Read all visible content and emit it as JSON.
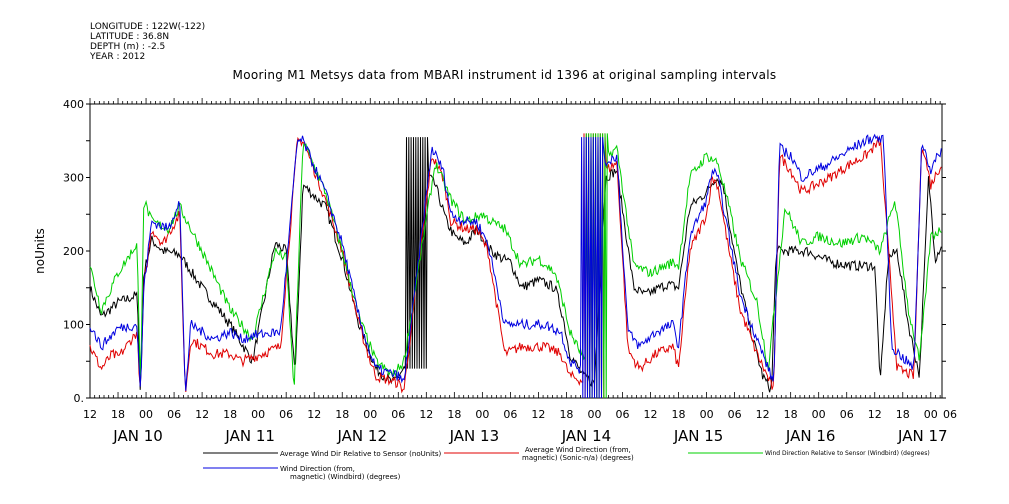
{
  "meta": {
    "longitude": "LONGITUDE : 122W(-122)",
    "latitude": "LATITUDE : 36.8N",
    "depth": "DEPTH (m) : -2.5",
    "year": "YEAR : 2012"
  },
  "chart_data": {
    "type": "line",
    "title": "Mooring M1 Metsys data from MBARI instrument id 1396 at original sampling intervals",
    "ylabel": "noUnits",
    "ylim": [
      0,
      400
    ],
    "yticks": [
      "0.",
      "100",
      "200",
      "300",
      "400"
    ],
    "xlim_days": [
      9.5,
      17.1
    ],
    "hour_ticks": [
      {
        "d": 9.5,
        "label": "12"
      },
      {
        "d": 9.75,
        "label": "18"
      },
      {
        "d": 10.0,
        "label": "00"
      },
      {
        "d": 10.25,
        "label": "06"
      },
      {
        "d": 10.5,
        "label": "12"
      },
      {
        "d": 10.75,
        "label": "18"
      },
      {
        "d": 11.0,
        "label": "00"
      },
      {
        "d": 11.25,
        "label": "06"
      },
      {
        "d": 11.5,
        "label": "12"
      },
      {
        "d": 11.75,
        "label": "18"
      },
      {
        "d": 12.0,
        "label": "00"
      },
      {
        "d": 12.25,
        "label": "06"
      },
      {
        "d": 12.5,
        "label": "12"
      },
      {
        "d": 12.75,
        "label": "18"
      },
      {
        "d": 13.0,
        "label": "00"
      },
      {
        "d": 13.25,
        "label": "06"
      },
      {
        "d": 13.5,
        "label": "12"
      },
      {
        "d": 13.75,
        "label": "18"
      },
      {
        "d": 14.0,
        "label": "00"
      },
      {
        "d": 14.25,
        "label": "06"
      },
      {
        "d": 14.5,
        "label": "12"
      },
      {
        "d": 14.75,
        "label": "18"
      },
      {
        "d": 15.0,
        "label": "00"
      },
      {
        "d": 15.25,
        "label": "06"
      },
      {
        "d": 15.5,
        "label": "12"
      },
      {
        "d": 15.75,
        "label": "18"
      },
      {
        "d": 16.0,
        "label": "00"
      },
      {
        "d": 16.25,
        "label": "06"
      },
      {
        "d": 16.5,
        "label": "12"
      },
      {
        "d": 16.75,
        "label": "18"
      },
      {
        "d": 17.0,
        "label": "00"
      },
      {
        "d": 17.25,
        "label": "06"
      }
    ],
    "day_labels": [
      {
        "d": 10.0,
        "label": "JAN 10"
      },
      {
        "d": 11.0,
        "label": "JAN 11"
      },
      {
        "d": 12.0,
        "label": "JAN 12"
      },
      {
        "d": 13.0,
        "label": "JAN 13"
      },
      {
        "d": 14.0,
        "label": "JAN 14"
      },
      {
        "d": 15.0,
        "label": "JAN 15"
      },
      {
        "d": 16.0,
        "label": "JAN 16"
      },
      {
        "d": 17.0,
        "label": "JAN 17"
      }
    ],
    "series": [
      {
        "name": "Average Wind Dir Relative to Sensor (noUnits)",
        "color": "#000000",
        "anchors": [
          [
            9.5,
            150
          ],
          [
            9.6,
            110
          ],
          [
            9.75,
            130
          ],
          [
            9.92,
            140
          ],
          [
            9.95,
            5
          ],
          [
            9.98,
            170
          ],
          [
            10.05,
            215
          ],
          [
            10.15,
            200
          ],
          [
            10.3,
            195
          ],
          [
            10.5,
            150
          ],
          [
            10.75,
            100
          ],
          [
            10.95,
            50
          ],
          [
            11.15,
            210
          ],
          [
            11.25,
            200
          ],
          [
            11.33,
            30
          ],
          [
            11.4,
            290
          ],
          [
            11.6,
            260
          ],
          [
            11.75,
            190
          ],
          [
            11.9,
            100
          ],
          [
            12.0,
            60
          ],
          [
            12.05,
            40
          ],
          [
            12.2,
            20
          ],
          [
            12.3,
            40
          ],
          [
            12.4,
            20
          ],
          [
            12.46,
            300
          ],
          [
            12.53,
            300
          ],
          [
            12.58,
            290
          ],
          [
            12.68,
            240
          ],
          [
            12.75,
            220
          ],
          [
            12.85,
            210
          ],
          [
            12.95,
            230
          ],
          [
            13.08,
            200
          ],
          [
            13.17,
            190
          ],
          [
            13.25,
            185
          ],
          [
            13.35,
            150
          ],
          [
            13.5,
            160
          ],
          [
            13.65,
            150
          ],
          [
            13.72,
            110
          ],
          [
            13.78,
            60
          ],
          [
            13.9,
            30
          ],
          [
            14.0,
            20
          ],
          [
            14.1,
            300
          ],
          [
            14.2,
            310
          ],
          [
            14.35,
            150
          ],
          [
            14.45,
            140
          ],
          [
            14.65,
            155
          ],
          [
            14.75,
            150
          ],
          [
            14.85,
            260
          ],
          [
            15.0,
            280
          ],
          [
            15.08,
            300
          ],
          [
            15.15,
            290
          ],
          [
            15.2,
            240
          ],
          [
            15.28,
            170
          ],
          [
            15.38,
            100
          ],
          [
            15.5,
            30
          ],
          [
            15.58,
            10
          ],
          [
            15.62,
            200
          ],
          [
            15.7,
            200
          ],
          [
            15.9,
            200
          ],
          [
            16.1,
            185
          ],
          [
            16.3,
            180
          ],
          [
            16.5,
            180
          ],
          [
            16.55,
            20
          ],
          [
            16.62,
            190
          ],
          [
            16.7,
            200
          ],
          [
            16.8,
            100
          ],
          [
            16.9,
            30
          ],
          [
            16.98,
            300
          ],
          [
            17.04,
            190
          ],
          [
            17.1,
            210
          ]
        ],
        "switch": {
          "from": 12.32,
          "to": 12.52,
          "hi": 355,
          "lo": 40
        }
      },
      {
        "name": "Average Wind Direction (from, magnetic) (Sonic-n/a) (degrees)",
        "color": "#e00000",
        "anchors": [
          [
            9.5,
            70
          ],
          [
            9.6,
            40
          ],
          [
            9.7,
            60
          ],
          [
            9.75,
            55
          ],
          [
            9.92,
            90
          ],
          [
            9.95,
            5
          ],
          [
            9.98,
            150
          ],
          [
            10.05,
            230
          ],
          [
            10.15,
            210
          ],
          [
            10.3,
            250
          ],
          [
            10.35,
            5
          ],
          [
            10.4,
            80
          ],
          [
            10.6,
            60
          ],
          [
            10.75,
            60
          ],
          [
            10.85,
            50
          ],
          [
            10.95,
            55
          ],
          [
            11.2,
            70
          ],
          [
            11.35,
            350
          ],
          [
            11.4,
            350
          ],
          [
            11.6,
            270
          ],
          [
            11.75,
            200
          ],
          [
            11.9,
            100
          ],
          [
            12.0,
            50
          ],
          [
            12.05,
            30
          ],
          [
            12.25,
            20
          ],
          [
            12.3,
            10
          ],
          [
            12.55,
            330
          ],
          [
            12.65,
            300
          ],
          [
            12.72,
            240
          ],
          [
            12.85,
            230
          ],
          [
            12.95,
            230
          ],
          [
            13.05,
            200
          ],
          [
            13.2,
            60
          ],
          [
            13.35,
            70
          ],
          [
            13.55,
            70
          ],
          [
            13.7,
            60
          ],
          [
            13.78,
            30
          ],
          [
            13.95,
            20
          ],
          [
            14.05,
            350
          ],
          [
            14.1,
            310
          ],
          [
            14.2,
            320
          ],
          [
            14.3,
            65
          ],
          [
            14.4,
            40
          ],
          [
            14.55,
            60
          ],
          [
            14.7,
            70
          ],
          [
            14.75,
            40
          ],
          [
            14.85,
            200
          ],
          [
            15.0,
            250
          ],
          [
            15.05,
            300
          ],
          [
            15.1,
            290
          ],
          [
            15.2,
            200
          ],
          [
            15.3,
            120
          ],
          [
            15.45,
            60
          ],
          [
            15.6,
            10
          ],
          [
            15.65,
            330
          ],
          [
            15.75,
            310
          ],
          [
            15.85,
            280
          ],
          [
            16.1,
            300
          ],
          [
            16.3,
            320
          ],
          [
            16.42,
            330
          ],
          [
            16.55,
            350
          ],
          [
            16.7,
            40
          ],
          [
            16.85,
            30
          ],
          [
            16.92,
            350
          ],
          [
            17.0,
            290
          ],
          [
            17.1,
            320
          ]
        ],
        "switch": {
          "from": 13.9,
          "to": 14.1,
          "hi": 360,
          "lo": 0
        }
      },
      {
        "name": "Wind Direction Relative to Sensor (Windbird) (degrees)",
        "color": "#00d000",
        "anchors": [
          [
            9.5,
            180
          ],
          [
            9.6,
            120
          ],
          [
            9.75,
            170
          ],
          [
            9.92,
            210
          ],
          [
            9.95,
            10
          ],
          [
            9.98,
            270
          ],
          [
            10.05,
            240
          ],
          [
            10.2,
            230
          ],
          [
            10.3,
            260
          ],
          [
            10.5,
            200
          ],
          [
            10.75,
            120
          ],
          [
            10.95,
            80
          ],
          [
            11.15,
            200
          ],
          [
            11.25,
            190
          ],
          [
            11.32,
            10
          ],
          [
            11.4,
            350
          ],
          [
            11.6,
            280
          ],
          [
            11.75,
            200
          ],
          [
            11.9,
            110
          ],
          [
            12.0,
            70
          ],
          [
            12.05,
            50
          ],
          [
            12.2,
            30
          ],
          [
            12.3,
            50
          ],
          [
            12.58,
            320
          ],
          [
            12.72,
            270
          ],
          [
            12.85,
            240
          ],
          [
            13.0,
            250
          ],
          [
            13.08,
            240
          ],
          [
            13.2,
            230
          ],
          [
            13.35,
            180
          ],
          [
            13.5,
            190
          ],
          [
            13.65,
            170
          ],
          [
            13.72,
            130
          ],
          [
            13.78,
            90
          ],
          [
            13.95,
            40
          ],
          [
            14.05,
            320
          ],
          [
            14.2,
            340
          ],
          [
            14.35,
            180
          ],
          [
            14.5,
            170
          ],
          [
            14.7,
            185
          ],
          [
            14.75,
            180
          ],
          [
            14.85,
            300
          ],
          [
            15.0,
            330
          ],
          [
            15.1,
            320
          ],
          [
            15.2,
            260
          ],
          [
            15.3,
            190
          ],
          [
            15.45,
            130
          ],
          [
            15.55,
            40
          ],
          [
            15.7,
            260
          ],
          [
            15.85,
            210
          ],
          [
            16.0,
            220
          ],
          [
            16.2,
            210
          ],
          [
            16.4,
            220
          ],
          [
            16.55,
            200
          ],
          [
            16.68,
            270
          ],
          [
            16.8,
            120
          ],
          [
            16.9,
            50
          ],
          [
            17.0,
            220
          ],
          [
            17.1,
            230
          ]
        ],
        "switch": {
          "from": 13.92,
          "to": 14.12,
          "hi": 360,
          "lo": 0
        }
      },
      {
        "name": "Wind Direction (from, magnetic) (Windbird) (degrees)",
        "color": "#0000e0",
        "anchors": [
          [
            9.5,
            100
          ],
          [
            9.6,
            70
          ],
          [
            9.75,
            95
          ],
          [
            9.92,
            100
          ],
          [
            9.95,
            5
          ],
          [
            9.98,
            150
          ],
          [
            10.05,
            240
          ],
          [
            10.2,
            230
          ],
          [
            10.3,
            270
          ],
          [
            10.35,
            5
          ],
          [
            10.4,
            100
          ],
          [
            10.6,
            80
          ],
          [
            10.75,
            90
          ],
          [
            10.85,
            80
          ],
          [
            10.95,
            85
          ],
          [
            11.2,
            90
          ],
          [
            11.35,
            350
          ],
          [
            11.4,
            350
          ],
          [
            11.6,
            280
          ],
          [
            11.75,
            210
          ],
          [
            11.9,
            110
          ],
          [
            12.0,
            60
          ],
          [
            12.05,
            40
          ],
          [
            12.25,
            30
          ],
          [
            12.3,
            20
          ],
          [
            12.55,
            340
          ],
          [
            12.65,
            310
          ],
          [
            12.72,
            250
          ],
          [
            12.85,
            240
          ],
          [
            12.95,
            240
          ],
          [
            13.05,
            210
          ],
          [
            13.2,
            100
          ],
          [
            13.35,
            100
          ],
          [
            13.55,
            100
          ],
          [
            13.7,
            90
          ],
          [
            13.78,
            50
          ],
          [
            13.95,
            30
          ],
          [
            14.05,
            350
          ],
          [
            14.1,
            320
          ],
          [
            14.2,
            330
          ],
          [
            14.3,
            90
          ],
          [
            14.4,
            70
          ],
          [
            14.55,
            90
          ],
          [
            14.7,
            100
          ],
          [
            14.75,
            70
          ],
          [
            14.85,
            220
          ],
          [
            15.0,
            270
          ],
          [
            15.05,
            310
          ],
          [
            15.1,
            300
          ],
          [
            15.2,
            220
          ],
          [
            15.3,
            140
          ],
          [
            15.45,
            80
          ],
          [
            15.6,
            20
          ],
          [
            15.65,
            340
          ],
          [
            15.75,
            330
          ],
          [
            15.85,
            300
          ],
          [
            16.1,
            320
          ],
          [
            16.3,
            340
          ],
          [
            16.42,
            350
          ],
          [
            16.5,
            355
          ],
          [
            16.58,
            350
          ],
          [
            16.65,
            70
          ],
          [
            16.85,
            40
          ],
          [
            16.92,
            350
          ],
          [
            17.0,
            310
          ],
          [
            17.1,
            340
          ]
        ],
        "switch": {
          "from": 13.88,
          "to": 14.08,
          "hi": 355,
          "lo": 0
        }
      }
    ]
  },
  "legend": [
    {
      "lines": [
        "Average Wind Dir Relative to Sensor (noUnits)"
      ],
      "color": "#000000"
    },
    {
      "lines": [
        "Average Wind Direction (from,",
        "magnetic) (Sonic-n/a) (degrees)"
      ],
      "color": "#e00000"
    },
    {
      "lines": [
        "Wind Direction Relative to Sensor (Windbird) (degrees)"
      ],
      "color": "#00d000"
    },
    {
      "lines": [
        "Wind Direction (from,",
        "magnetic) (Windbird) (degrees)"
      ],
      "color": "#0000e0"
    }
  ]
}
